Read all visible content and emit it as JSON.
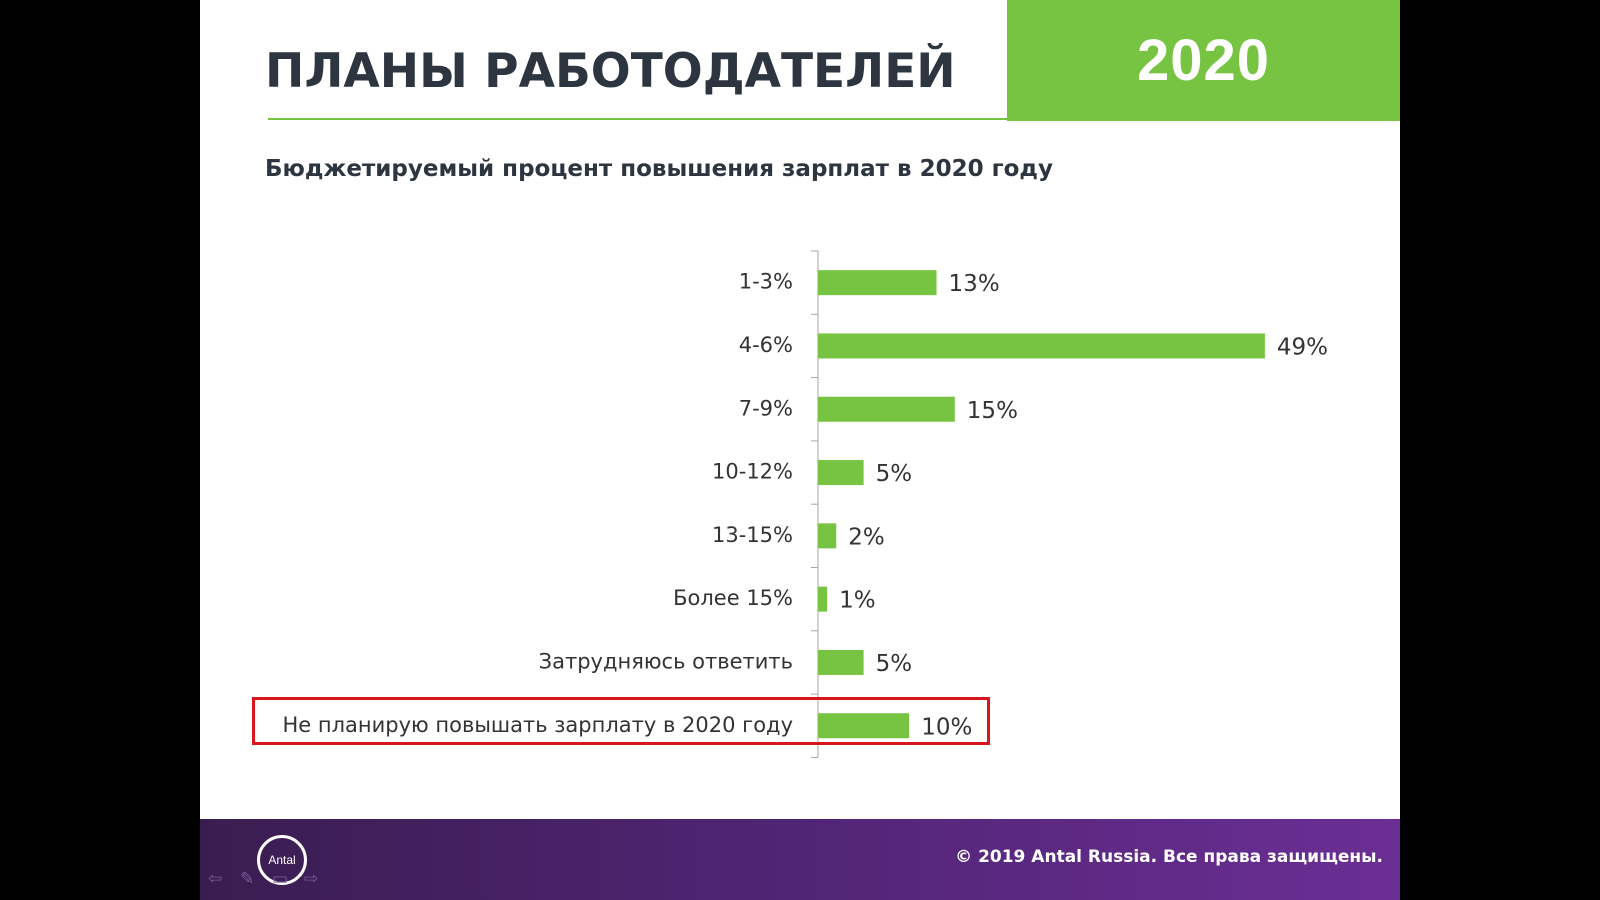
{
  "slide": {
    "title": "ПЛАНЫ РАБОТОДАТЕЛЕЙ",
    "year": "2020",
    "accent_color": "#76c442"
  },
  "footer": {
    "logo_text": "Antal",
    "copyright": "© 2019 Antal Russia. Все права защищены.",
    "background_color": "#4e2472"
  },
  "navigation": {
    "back_icon": "arrow-left-icon",
    "pen_icon": "pen-icon",
    "menu_icon": "menu-icon",
    "forward_icon": "arrow-right-icon"
  },
  "chart_data": {
    "type": "bar",
    "orientation": "horizontal",
    "title": "Бюджетируемый процент повышения зарплат в 2020 году",
    "categories": [
      "1-3%",
      "4-6%",
      "7-9%",
      "10-12%",
      "13-15%",
      "Более 15%",
      "Затрудняюсь ответить",
      "Не планирую повышать зарплату в 2020 году"
    ],
    "values": [
      13,
      49,
      15,
      5,
      2,
      1,
      5,
      10
    ],
    "data_labels": [
      "13%",
      "49%",
      "15%",
      "5%",
      "2%",
      "1%",
      "5%",
      "10%"
    ],
    "bar_color": "#76c442",
    "highlighted_category": "Не планирую повышать зарплату в 2020 году",
    "highlight_color": "#d9161c",
    "grid": false,
    "legend": "none"
  }
}
